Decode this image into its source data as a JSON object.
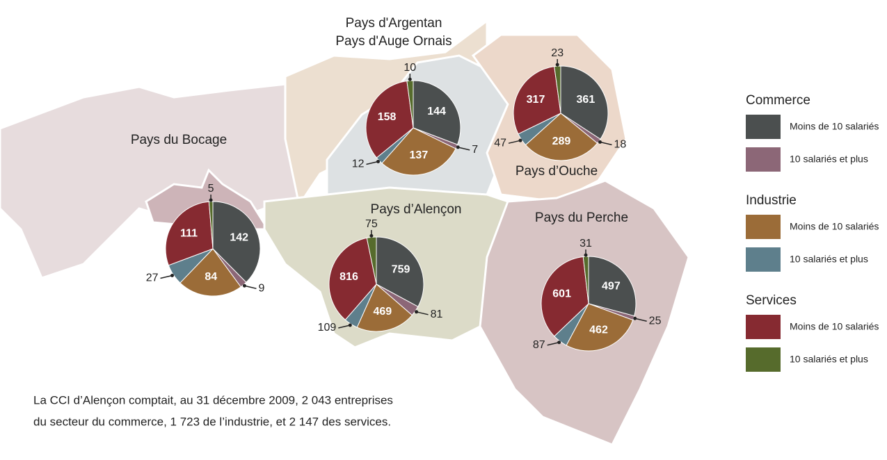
{
  "regions": [
    {
      "label": [
        "Pays du Bocage"
      ],
      "values": [
        142,
        9,
        84,
        27,
        111,
        5
      ]
    },
    {
      "label": [
        "Pays d'Argentan",
        "Pays d'Auge Ornais"
      ],
      "values": [
        144,
        7,
        137,
        12,
        158,
        10
      ]
    },
    {
      "label": [
        "Pays d’Ouche"
      ],
      "values": [
        361,
        18,
        289,
        47,
        317,
        23
      ]
    },
    {
      "label": [
        "Pays d’Alençon"
      ],
      "values": [
        759,
        81,
        469,
        109,
        816,
        75
      ]
    },
    {
      "label": [
        "Pays du Perche"
      ],
      "values": [
        497,
        25,
        462,
        87,
        601,
        31
      ]
    }
  ],
  "legend": [
    {
      "title": "Commerce",
      "items": [
        {
          "label": "Moins de 10 salariés",
          "color": "#4b4f4f"
        },
        {
          "label": "10 salariés et plus",
          "color": "#8c6777"
        }
      ]
    },
    {
      "title": "Industrie",
      "items": [
        {
          "label": "Moins de 10 salariés",
          "color": "#9b6c38"
        },
        {
          "label": "10 salariés et plus",
          "color": "#5e7f8c"
        }
      ]
    },
    {
      "title": "Services",
      "items": [
        {
          "label": "Moins de 10 salariés",
          "color": "#862a31"
        },
        {
          "label": "10 salariés et plus",
          "color": "#566b2c"
        }
      ]
    }
  ],
  "note": [
    "La CCI d’Alençon comptait, au 31 décembre 2009, 2 043 entreprises",
    "du secteur du commerce, 1 723 de l’industrie, et 2 147 des services."
  ]
}
